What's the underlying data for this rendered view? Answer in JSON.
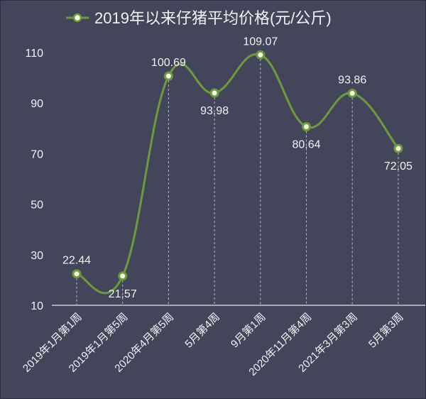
{
  "chart_data": {
    "type": "line",
    "title": "2019年以来仔猪平均价格(元/公斤)",
    "legend": {
      "entries": [
        "2019年以来仔猪平均价格(元/公斤)"
      ],
      "placement": "top-center"
    },
    "categories": [
      "2019年1月第1周",
      "2019年1月第5周",
      "2020年4月第5周",
      "5月第4周",
      "9月第1周",
      "2020年11月第4周",
      "2021年3月第3周",
      "5月第3周"
    ],
    "series": [
      {
        "name": "2019年以来仔猪平均价格(元/公斤)",
        "values": [
          22.44,
          21.57,
          100.69,
          93.98,
          109.07,
          80.64,
          93.86,
          72.05
        ]
      }
    ],
    "data_labels": [
      "22.44",
      "21.57",
      "100.69",
      "93.98",
      "109.07",
      "80.64",
      "93.86",
      "72.05"
    ],
    "label_positions": [
      "above",
      "below",
      "above",
      "below",
      "above",
      "below",
      "above",
      "below"
    ],
    "yticks": [
      10,
      30,
      50,
      70,
      90,
      110
    ],
    "ylim": [
      10,
      110
    ],
    "xlabel": "",
    "ylabel": "",
    "grid": "vertical dashed drop lines",
    "colors": {
      "background": "#43455a",
      "line": "#6b9c3a",
      "marker_fill": "#f4f8e8",
      "text": "#f2f2f2"
    }
  }
}
